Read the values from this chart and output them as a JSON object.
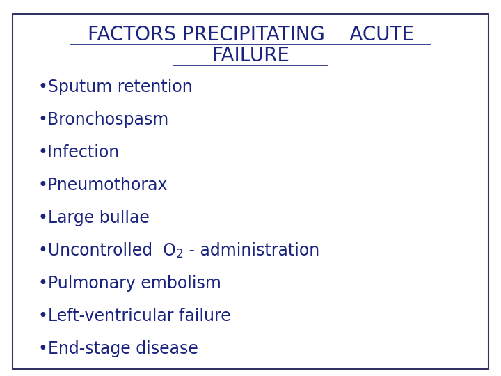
{
  "title_line1": "FACTORS PRECIPITATING    ACUTE",
  "title_line2": "FAILURE",
  "title_color": "#1a237e",
  "bullet_color": "#1a237e",
  "background_color": "#ffffff",
  "border_color": "#333366",
  "bullets": [
    {
      "text": "Sputum retention",
      "has_subscript": false
    },
    {
      "text": "Bronchospasm",
      "has_subscript": false
    },
    {
      "text": "Infection",
      "has_subscript": false
    },
    {
      "text": "Pneumothorax",
      "has_subscript": false
    },
    {
      "text": "Large bullae",
      "has_subscript": false
    },
    {
      "text_before": "•Uncontrolled  O",
      "text_sub": "2",
      "text_after": " - administration",
      "has_subscript": true
    },
    {
      "text": "Pulmonary embolism",
      "has_subscript": false
    },
    {
      "text": "Left-ventricular failure",
      "has_subscript": false
    },
    {
      "text": "End-stage disease",
      "has_subscript": false
    }
  ],
  "title_fontsize": 20,
  "bullet_fontsize": 17,
  "figsize": [
    7.2,
    5.4
  ],
  "dpi": 100
}
